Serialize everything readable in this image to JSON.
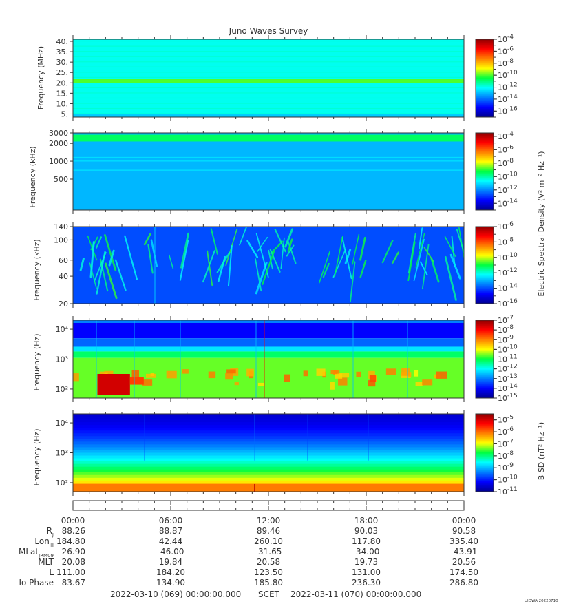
{
  "title": "Juno Waves Survey",
  "footer": {
    "start": "2022-03-10 (069) 00:00:00.000",
    "label": "SCET",
    "end": "2022-03-11 (070) 00:00:00.000",
    "version": "UIOWA 20220710"
  },
  "chart_data": [
    {
      "type": "heatmap",
      "ylabel": "Frequency (MHz)",
      "yticks": [
        "40.",
        "35.",
        "30.",
        "25.",
        "20.",
        "15.",
        "10.",
        "5."
      ],
      "yvals": [
        40,
        35,
        30,
        25,
        20,
        15,
        10,
        5
      ],
      "ylim": [
        3.5,
        41
      ],
      "yscale": "linear",
      "colorbar": {
        "min_exp": -17,
        "max_exp": -4,
        "ticks": [
          -4,
          -6,
          -8,
          -10,
          -12,
          -14,
          -16
        ]
      },
      "features": {
        "background_level": -12,
        "band_mhz": [
          20,
          22
        ],
        "band_level": -10
      }
    },
    {
      "type": "heatmap",
      "ylabel": "Frequency (kHz)",
      "yticks": [
        "3000",
        "2000",
        "1000",
        "500"
      ],
      "yvals": [
        3000,
        2000,
        1000,
        500
      ],
      "ylim": [
        150,
        3000
      ],
      "yscale": "log",
      "colorbar": {
        "min_exp": -15,
        "max_exp": -3.5,
        "ticks": [
          -4,
          -6,
          -8,
          -10,
          -12,
          -14
        ]
      },
      "features": {
        "background_level": -11.5,
        "band_khz": [
          2150,
          2800
        ],
        "band_level": -9.5
      }
    },
    {
      "type": "heatmap",
      "ylabel": "Frequency (kHz)",
      "yticks": [
        "140",
        "100",
        "60",
        "40",
        "20"
      ],
      "yvals": [
        140,
        100,
        60,
        40,
        20
      ],
      "ylim": [
        20,
        140
      ],
      "yscale": "log",
      "colorbar": {
        "min_exp": -16,
        "max_exp": -6,
        "ticks": [
          -6,
          -8,
          -10,
          -12,
          -14,
          -16
        ]
      },
      "features": {
        "background_level": -14,
        "bursts": "quasi-periodic emission striations"
      }
    },
    {
      "type": "heatmap",
      "ylabel": "Frequency (Hz)",
      "yticks": [
        "10⁴",
        "10³",
        "10²"
      ],
      "yvals": [
        10000,
        1000,
        100
      ],
      "ylim": [
        50,
        20000
      ],
      "yscale": "log",
      "colorbar": {
        "min_exp": -15,
        "max_exp": -7,
        "ticks": [
          -7,
          -8,
          -9,
          -10,
          -11,
          -12,
          -13,
          -14,
          -15
        ]
      },
      "features": {
        "upper_level": -14,
        "lower_level": -10,
        "intense_hours": [
          1.5,
          3.5
        ]
      }
    },
    {
      "type": "heatmap",
      "ylabel": "Frequency (Hz)",
      "yticks": [
        "10⁴",
        "10³",
        "10²"
      ],
      "yvals": [
        10000,
        1000,
        100
      ],
      "ylim": [
        50,
        20000
      ],
      "yscale": "log",
      "colorbar": {
        "min_exp": -11,
        "max_exp": -4.5,
        "ticks": [
          -5,
          -6,
          -7,
          -8,
          -9,
          -10,
          -11
        ]
      },
      "features": {
        "high_level": -10.5,
        "low_level": -6
      }
    }
  ],
  "colorbar_labels": {
    "electric": "Electric Spectral Density (V² m⁻² Hz⁻¹)",
    "magnetic": "B SD (nT² Hz⁻¹)"
  },
  "ephemeris": {
    "times": [
      "00:00",
      "06:00",
      "12:00",
      "18:00",
      "00:00"
    ],
    "rows": [
      {
        "label": "R",
        "sub": "J",
        "values": [
          "88.26",
          "88.87",
          "89.46",
          "90.03",
          "90.58"
        ]
      },
      {
        "label": "Lon",
        "sub": "III",
        "values": [
          "184.80",
          "42.44",
          "260.10",
          "117.80",
          "335.40"
        ]
      },
      {
        "label": "MLat",
        "sub": "JRM09",
        "values": [
          "-26.90",
          "-46.00",
          "-31.65",
          "-34.00",
          "-43.91"
        ]
      },
      {
        "label": "MLT",
        "sub": "",
        "values": [
          "20.08",
          "19.84",
          "20.58",
          "19.73",
          "20.56"
        ]
      },
      {
        "label": "L",
        "sub": "",
        "values": [
          "111.00",
          "184.20",
          "123.50",
          "131.00",
          "174.50"
        ]
      },
      {
        "label": "Io Phase",
        "sub": "",
        "values": [
          "83.67",
          "134.90",
          "185.80",
          "236.30",
          "286.80"
        ]
      }
    ]
  }
}
